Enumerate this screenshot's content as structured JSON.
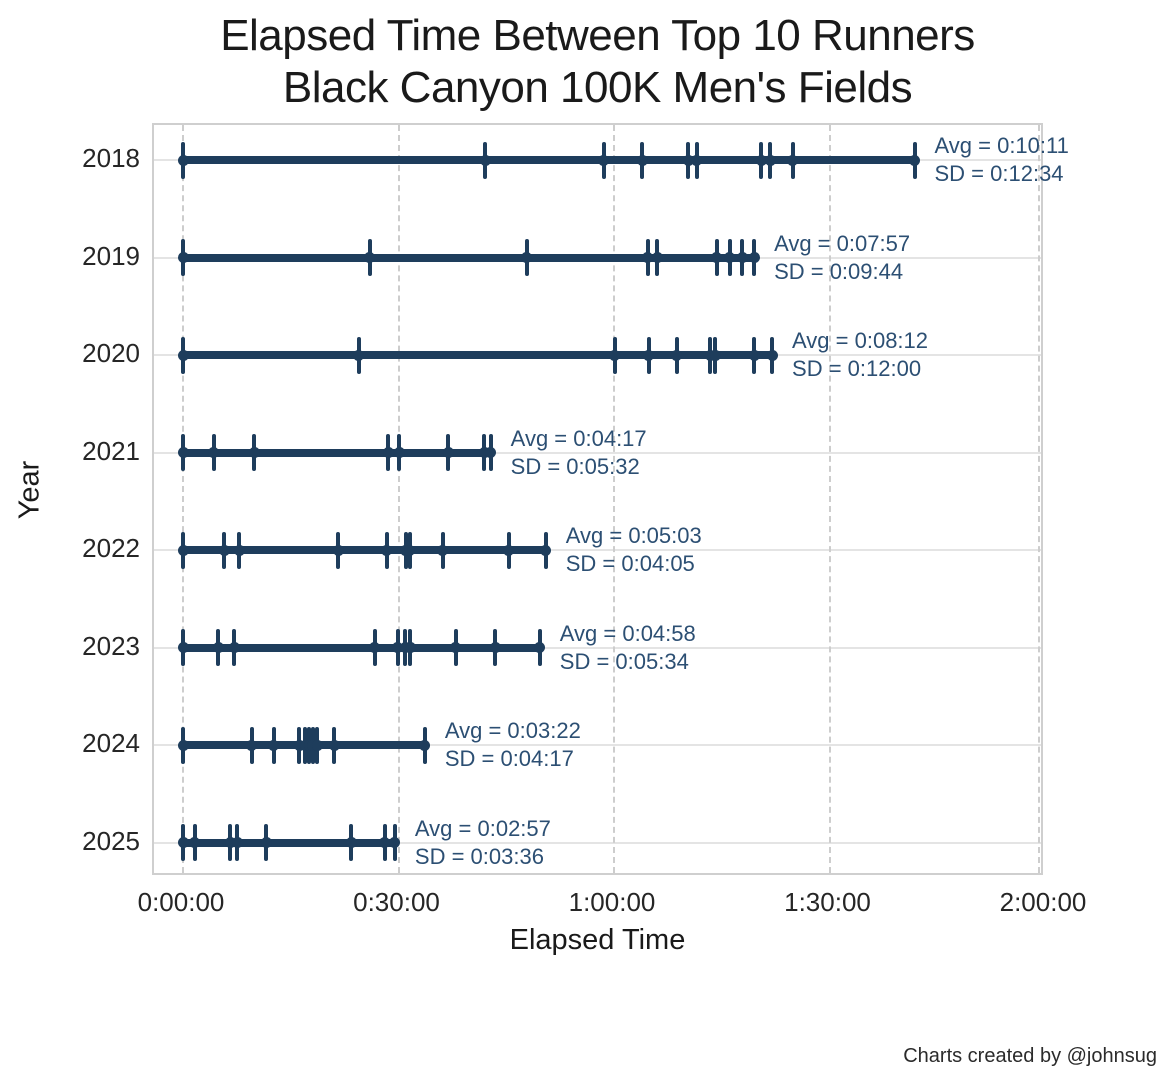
{
  "title": {
    "line1": "Elapsed Time Between Top 10 Runners",
    "line2": "Black Canyon 100K Men's Fields"
  },
  "credit": "Charts created by @johnsug",
  "colors": {
    "series": "#1e3d5c",
    "annotation": "#2c4f73",
    "axis_text": "#262626",
    "grid_horizontal": "#e4e4e4",
    "grid_vertical_dashed": "#cdcdcd",
    "plot_border": "#cfcfcf",
    "background": "#ffffff"
  },
  "chart_data": {
    "type": "scatter",
    "title": "Elapsed Time Between Top 10 Runners\nBlack Canyon 100K Men's Fields",
    "xlabel": "Elapsed Time",
    "ylabel": "Year",
    "x_range_seconds": [
      0,
      7200
    ],
    "grid": true,
    "legend": "none",
    "x_ticks": [
      {
        "label": "0:00:00",
        "seconds": 0
      },
      {
        "label": "0:30:00",
        "seconds": 1800
      },
      {
        "label": "1:00:00",
        "seconds": 3600
      },
      {
        "label": "1:30:00",
        "seconds": 5400
      },
      {
        "label": "2:00:00",
        "seconds": 7200
      }
    ],
    "series": [
      {
        "year": "2018",
        "avg_label": "Avg = 0:10:11",
        "sd_label": "SD = 0:12:34",
        "points_hms": [
          "0:00:00",
          "0:42:05",
          "0:58:35",
          "1:03:55",
          "1:10:20",
          "1:11:30",
          "1:20:30",
          "1:21:45",
          "1:24:55",
          "1:41:50"
        ],
        "points_seconds": [
          0,
          2525,
          3515,
          3835,
          4220,
          4290,
          4830,
          4905,
          5095,
          6110
        ]
      },
      {
        "year": "2019",
        "avg_label": "Avg = 0:07:57",
        "sd_label": "SD = 0:09:44",
        "points_hms": [
          "0:00:00",
          "0:26:00",
          "0:47:50",
          "1:04:40",
          "1:06:00",
          "1:14:20",
          "1:16:05",
          "1:17:50",
          "1:19:30"
        ],
        "points_seconds": [
          0,
          1560,
          2870,
          3880,
          3960,
          4460,
          4565,
          4670,
          4770
        ]
      },
      {
        "year": "2020",
        "avg_label": "Avg = 0:08:12",
        "sd_label": "SD = 0:12:00",
        "points_hms": [
          "0:00:00",
          "0:24:30",
          "1:00:05",
          "1:04:50",
          "1:08:45",
          "1:13:25",
          "1:14:05",
          "1:19:30",
          "1:22:00"
        ],
        "points_seconds": [
          0,
          1470,
          3605,
          3890,
          4125,
          4405,
          4445,
          4770,
          4920
        ]
      },
      {
        "year": "2021",
        "avg_label": "Avg = 0:04:17",
        "sd_label": "SD = 0:05:32",
        "points_hms": [
          "0:00:00",
          "0:04:15",
          "0:09:55",
          "0:28:35",
          "0:30:05",
          "0:36:55",
          "0:41:55",
          "0:42:50"
        ],
        "points_seconds": [
          0,
          255,
          595,
          1715,
          1805,
          2215,
          2515,
          2570
        ]
      },
      {
        "year": "2022",
        "avg_label": "Avg = 0:05:03",
        "sd_label": "SD = 0:04:05",
        "points_hms": [
          "0:00:00",
          "0:05:45",
          "0:07:50",
          "0:21:35",
          "0:28:20",
          "0:31:00",
          "0:31:35",
          "0:36:10",
          "0:45:20",
          "0:50:30"
        ],
        "points_seconds": [
          0,
          345,
          470,
          1295,
          1700,
          1860,
          1895,
          2170,
          2720,
          3030
        ]
      },
      {
        "year": "2023",
        "avg_label": "Avg = 0:04:58",
        "sd_label": "SD = 0:05:34",
        "points_hms": [
          "0:00:00",
          "0:04:55",
          "0:07:10",
          "0:26:40",
          "0:29:55",
          "0:30:55",
          "0:31:40",
          "0:38:00",
          "0:43:30",
          "0:49:40"
        ],
        "points_seconds": [
          0,
          295,
          430,
          1600,
          1795,
          1855,
          1900,
          2280,
          2610,
          2980
        ]
      },
      {
        "year": "2024",
        "avg_label": "Avg = 0:03:22",
        "sd_label": "SD = 0:04:17",
        "points_hms": [
          "0:00:00",
          "0:09:35",
          "0:12:40",
          "0:16:10",
          "0:17:00",
          "0:17:35",
          "0:18:05",
          "0:18:40",
          "0:21:05",
          "0:33:40"
        ],
        "points_seconds": [
          0,
          575,
          760,
          970,
          1020,
          1055,
          1085,
          1120,
          1265,
          2020
        ]
      },
      {
        "year": "2025",
        "avg_label": "Avg = 0:02:57",
        "sd_label": "SD = 0:03:36",
        "points_hms": [
          "0:00:00",
          "0:01:40",
          "0:06:35",
          "0:07:35",
          "0:11:35",
          "0:23:25",
          "0:28:05",
          "0:29:30"
        ],
        "points_seconds": [
          0,
          100,
          395,
          455,
          695,
          1405,
          1685,
          1770
        ]
      }
    ]
  }
}
